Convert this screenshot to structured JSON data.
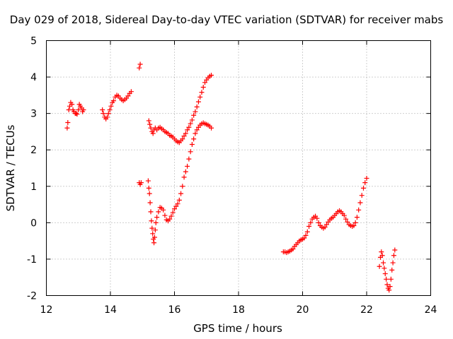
{
  "chart_data": {
    "type": "scatter",
    "title": "Day 029 of 2018, Sidereal Day-to-day VTEC variation (SDTVAR) for receiver mabs",
    "xlabel": "GPS time / hours",
    "ylabel": "SDTVAR / TECUs",
    "xlim": [
      12,
      24
    ],
    "ylim": [
      -2,
      5
    ],
    "xticks": [
      12,
      14,
      16,
      18,
      20,
      22,
      24
    ],
    "yticks": [
      -2,
      -1,
      0,
      1,
      2,
      3,
      4,
      5
    ],
    "grid": true,
    "marker": "plus",
    "colors": {
      "series": "#ff0000",
      "grid": "#a0a0a0",
      "axes": "#000000"
    },
    "series": [
      {
        "name": "SDTVAR",
        "points": [
          [
            12.65,
            2.6
          ],
          [
            12.67,
            2.75
          ],
          [
            12.7,
            3.1
          ],
          [
            12.73,
            3.2
          ],
          [
            12.76,
            3.3
          ],
          [
            12.8,
            3.25
          ],
          [
            12.83,
            3.1
          ],
          [
            12.86,
            3.05
          ],
          [
            12.9,
            3.0
          ],
          [
            12.93,
            3.0
          ],
          [
            12.96,
            2.98
          ],
          [
            13.0,
            3.1
          ],
          [
            13.03,
            3.25
          ],
          [
            13.06,
            3.2
          ],
          [
            13.1,
            3.15
          ],
          [
            13.13,
            3.05
          ],
          [
            13.16,
            3.1
          ],
          [
            13.75,
            3.1
          ],
          [
            13.78,
            3.0
          ],
          [
            13.82,
            2.9
          ],
          [
            13.86,
            2.85
          ],
          [
            13.9,
            2.9
          ],
          [
            13.94,
            3.0
          ],
          [
            13.98,
            3.1
          ],
          [
            14.02,
            3.2
          ],
          [
            14.06,
            3.3
          ],
          [
            14.1,
            3.35
          ],
          [
            14.15,
            3.45
          ],
          [
            14.2,
            3.5
          ],
          [
            14.25,
            3.48
          ],
          [
            14.3,
            3.42
          ],
          [
            14.35,
            3.38
          ],
          [
            14.4,
            3.35
          ],
          [
            14.45,
            3.38
          ],
          [
            14.5,
            3.42
          ],
          [
            14.55,
            3.48
          ],
          [
            14.6,
            3.55
          ],
          [
            14.65,
            3.6
          ],
          [
            14.9,
            4.25
          ],
          [
            14.93,
            4.35
          ],
          [
            14.9,
            1.1
          ],
          [
            14.93,
            1.05
          ],
          [
            14.96,
            1.1
          ],
          [
            15.2,
            2.8
          ],
          [
            15.23,
            2.7
          ],
          [
            15.26,
            2.6
          ],
          [
            15.3,
            2.5
          ],
          [
            15.33,
            2.45
          ],
          [
            15.36,
            2.55
          ],
          [
            15.4,
            2.6
          ],
          [
            15.45,
            2.55
          ],
          [
            15.5,
            2.6
          ],
          [
            15.55,
            2.62
          ],
          [
            15.6,
            2.58
          ],
          [
            15.65,
            2.55
          ],
          [
            15.7,
            2.5
          ],
          [
            15.75,
            2.48
          ],
          [
            15.8,
            2.45
          ],
          [
            15.85,
            2.4
          ],
          [
            15.9,
            2.38
          ],
          [
            15.95,
            2.35
          ],
          [
            16.0,
            2.3
          ],
          [
            16.05,
            2.25
          ],
          [
            16.1,
            2.22
          ],
          [
            16.15,
            2.2
          ],
          [
            16.2,
            2.25
          ],
          [
            16.25,
            2.3
          ],
          [
            16.3,
            2.38
          ],
          [
            16.35,
            2.45
          ],
          [
            16.4,
            2.55
          ],
          [
            16.45,
            2.62
          ],
          [
            16.5,
            2.72
          ],
          [
            16.55,
            2.82
          ],
          [
            16.6,
            2.95
          ],
          [
            16.65,
            3.05
          ],
          [
            16.7,
            3.18
          ],
          [
            16.75,
            3.32
          ],
          [
            16.8,
            3.45
          ],
          [
            16.85,
            3.58
          ],
          [
            16.9,
            3.72
          ],
          [
            16.95,
            3.85
          ],
          [
            17.0,
            3.92
          ],
          [
            17.05,
            3.98
          ],
          [
            17.1,
            4.02
          ],
          [
            17.15,
            4.05
          ],
          [
            15.18,
            1.15
          ],
          [
            15.2,
            0.95
          ],
          [
            15.22,
            0.8
          ],
          [
            15.24,
            0.55
          ],
          [
            15.26,
            0.3
          ],
          [
            15.28,
            0.05
          ],
          [
            15.3,
            -0.15
          ],
          [
            15.32,
            -0.3
          ],
          [
            15.34,
            -0.45
          ],
          [
            15.36,
            -0.55
          ],
          [
            15.38,
            -0.4
          ],
          [
            15.4,
            -0.2
          ],
          [
            15.42,
            0.0
          ],
          [
            15.45,
            0.15
          ],
          [
            15.5,
            0.3
          ],
          [
            15.55,
            0.42
          ],
          [
            15.6,
            0.4
          ],
          [
            15.65,
            0.35
          ],
          [
            15.7,
            0.2
          ],
          [
            15.75,
            0.08
          ],
          [
            15.8,
            0.05
          ],
          [
            15.85,
            0.1
          ],
          [
            15.9,
            0.18
          ],
          [
            15.95,
            0.28
          ],
          [
            16.0,
            0.38
          ],
          [
            16.05,
            0.45
          ],
          [
            16.1,
            0.52
          ],
          [
            16.15,
            0.62
          ],
          [
            16.2,
            0.8
          ],
          [
            16.25,
            1.0
          ],
          [
            16.3,
            1.25
          ],
          [
            16.35,
            1.4
          ],
          [
            16.4,
            1.55
          ],
          [
            16.45,
            1.75
          ],
          [
            16.5,
            1.95
          ],
          [
            16.55,
            2.15
          ],
          [
            16.6,
            2.3
          ],
          [
            16.65,
            2.45
          ],
          [
            16.7,
            2.55
          ],
          [
            16.75,
            2.62
          ],
          [
            16.8,
            2.68
          ],
          [
            16.85,
            2.72
          ],
          [
            16.9,
            2.74
          ],
          [
            16.95,
            2.72
          ],
          [
            17.0,
            2.7
          ],
          [
            17.05,
            2.68
          ],
          [
            17.1,
            2.65
          ],
          [
            17.15,
            2.6
          ],
          [
            19.4,
            -0.8
          ],
          [
            19.45,
            -0.8
          ],
          [
            19.5,
            -0.82
          ],
          [
            19.55,
            -0.8
          ],
          [
            19.6,
            -0.78
          ],
          [
            19.65,
            -0.75
          ],
          [
            19.7,
            -0.72
          ],
          [
            19.75,
            -0.65
          ],
          [
            19.8,
            -0.6
          ],
          [
            19.85,
            -0.55
          ],
          [
            19.9,
            -0.5
          ],
          [
            19.95,
            -0.47
          ],
          [
            20.0,
            -0.45
          ],
          [
            20.05,
            -0.42
          ],
          [
            20.1,
            -0.35
          ],
          [
            20.15,
            -0.25
          ],
          [
            20.2,
            -0.1
          ],
          [
            20.25,
            0.0
          ],
          [
            20.3,
            0.1
          ],
          [
            20.35,
            0.15
          ],
          [
            20.4,
            0.18
          ],
          [
            20.45,
            0.12
          ],
          [
            20.5,
            0.0
          ],
          [
            20.55,
            -0.08
          ],
          [
            20.6,
            -0.12
          ],
          [
            20.65,
            -0.15
          ],
          [
            20.7,
            -0.12
          ],
          [
            20.75,
            -0.05
          ],
          [
            20.8,
            0.02
          ],
          [
            20.85,
            0.08
          ],
          [
            20.9,
            0.12
          ],
          [
            20.95,
            0.15
          ],
          [
            21.0,
            0.2
          ],
          [
            21.05,
            0.25
          ],
          [
            21.1,
            0.3
          ],
          [
            21.15,
            0.33
          ],
          [
            21.2,
            0.3
          ],
          [
            21.25,
            0.25
          ],
          [
            21.3,
            0.2
          ],
          [
            21.35,
            0.1
          ],
          [
            21.4,
            0.02
          ],
          [
            21.45,
            -0.05
          ],
          [
            21.5,
            -0.08
          ],
          [
            21.55,
            -0.1
          ],
          [
            21.6,
            -0.08
          ],
          [
            21.65,
            0.0
          ],
          [
            21.7,
            0.15
          ],
          [
            21.75,
            0.35
          ],
          [
            21.8,
            0.55
          ],
          [
            21.85,
            0.75
          ],
          [
            21.9,
            0.95
          ],
          [
            21.95,
            1.1
          ],
          [
            22.0,
            1.22
          ],
          [
            22.4,
            -1.2
          ],
          [
            22.43,
            -0.95
          ],
          [
            22.46,
            -0.8
          ],
          [
            22.49,
            -0.9
          ],
          [
            22.52,
            -1.1
          ],
          [
            22.55,
            -1.25
          ],
          [
            22.58,
            -1.4
          ],
          [
            22.61,
            -1.55
          ],
          [
            22.64,
            -1.7
          ],
          [
            22.67,
            -1.8
          ],
          [
            22.7,
            -1.85
          ],
          [
            22.73,
            -1.75
          ],
          [
            22.76,
            -1.55
          ],
          [
            22.79,
            -1.3
          ],
          [
            22.82,
            -1.1
          ],
          [
            22.85,
            -0.9
          ],
          [
            22.88,
            -0.75
          ]
        ]
      }
    ]
  }
}
